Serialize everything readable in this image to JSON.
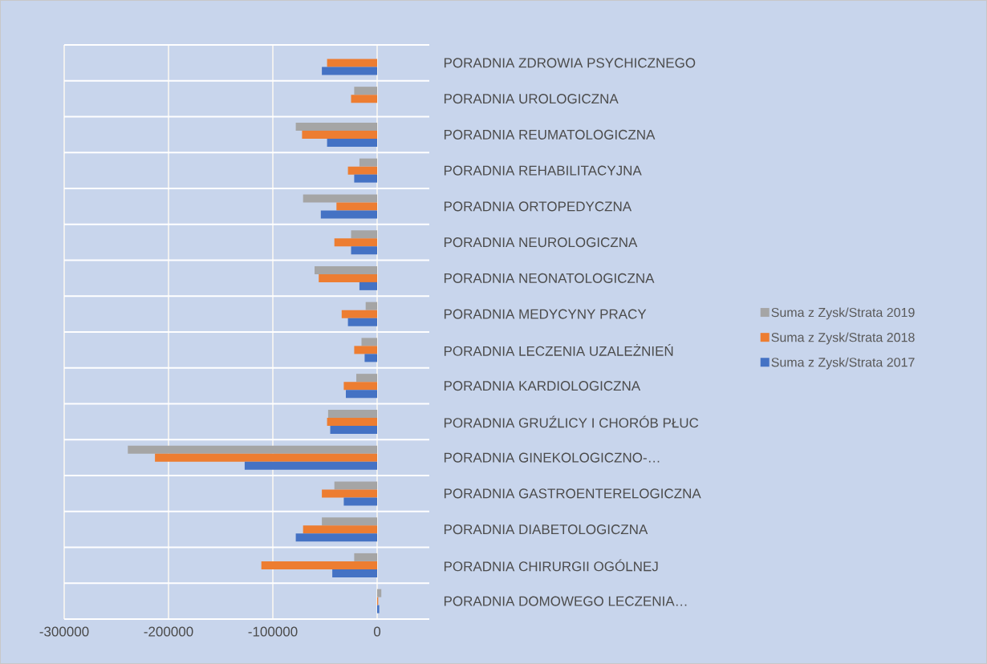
{
  "chart_data": {
    "type": "bar",
    "orientation": "horizontal",
    "categories": [
      "PORADNIA ZDROWIA PSYCHICZNEGO",
      "PORADNIA UROLOGICZNA",
      "PORADNIA REUMATOLOGICZNA",
      "PORADNIA REHABILITACYJNA",
      "PORADNIA ORTOPEDYCZNA",
      "PORADNIA NEUROLOGICZNA",
      "PORADNIA NEONATOLOGICZNA",
      "PORADNIA MEDYCYNY PRACY",
      "PORADNIA LECZENIA UZALEŻNIEŃ",
      "PORADNIA KARDIOLOGICZNA",
      "PORADNIA GRUŹLICY I CHORÓB PŁUC",
      "PORADNIA GINEKOLOGICZNO-…",
      "PORADNIA GASTROENTERELOGICZNA",
      "PORADNIA DIABETOLOGICZNA",
      "PORADNIA CHIRURGII OGÓLNEJ",
      "PORADNIA DOMOWEGO LECZENIA…"
    ],
    "series": [
      {
        "name": "Suma z Zysk/Strata 2019",
        "color": "#a5a5a5",
        "values": [
          null,
          -22000,
          -78000,
          -17000,
          -71000,
          -25000,
          -60000,
          -11000,
          -15000,
          -20000,
          -47000,
          -239000,
          -41000,
          -53000,
          -22000,
          4000
        ]
      },
      {
        "name": "Suma z Zysk/Strata 2018",
        "color": "#ed7d31",
        "values": [
          -48000,
          -25000,
          -72000,
          -28000,
          -39000,
          -41000,
          -56000,
          -34000,
          -22000,
          -32000,
          -48000,
          -213000,
          -53000,
          -71000,
          -111000,
          1000
        ]
      },
      {
        "name": "Suma z Zysk/Strata 2017",
        "color": "#4472c4",
        "values": [
          -53000,
          null,
          -48000,
          -22000,
          -54000,
          -25000,
          -17000,
          -28000,
          -12000,
          -30000,
          -45000,
          -127000,
          -32000,
          -78000,
          -43000,
          2000
        ]
      }
    ],
    "xlim": [
      -300000,
      50000
    ],
    "xticks": [
      -300000,
      -200000,
      -100000,
      0
    ],
    "grid": true,
    "legend": "right"
  }
}
